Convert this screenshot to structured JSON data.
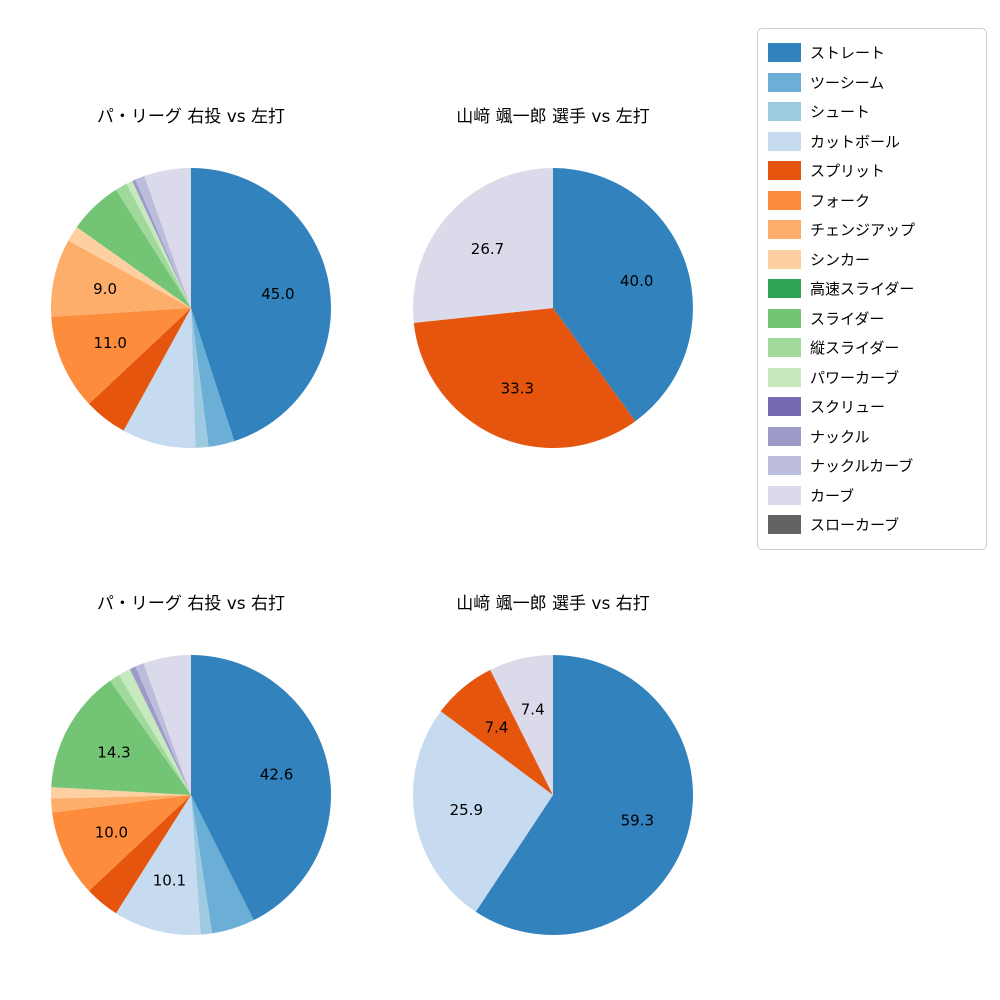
{
  "figure": {
    "background": "#ffffff",
    "text_color": "#000000"
  },
  "legend": {
    "position": "top-right",
    "items": [
      {
        "label": "ストレート",
        "color": "#3182bd"
      },
      {
        "label": "ツーシーム",
        "color": "#6baed6"
      },
      {
        "label": "シュート",
        "color": "#9ecae1"
      },
      {
        "label": "カットボール",
        "color": "#c6dbef"
      },
      {
        "label": "スプリット",
        "color": "#e6550d"
      },
      {
        "label": "フォーク",
        "color": "#fd8d3c"
      },
      {
        "label": "チェンジアップ",
        "color": "#fdae6b"
      },
      {
        "label": "シンカー",
        "color": "#fdd0a2"
      },
      {
        "label": "高速スライダー",
        "color": "#31a354"
      },
      {
        "label": "スライダー",
        "color": "#74c476"
      },
      {
        "label": "縦スライダー",
        "color": "#a1d99b"
      },
      {
        "label": "パワーカーブ",
        "color": "#c7e9c0"
      },
      {
        "label": "スクリュー",
        "color": "#756bb1"
      },
      {
        "label": "ナックル",
        "color": "#9e9ac8"
      },
      {
        "label": "ナックルカーブ",
        "color": "#bcbddc"
      },
      {
        "label": "カーブ",
        "color": "#dadaeb"
      },
      {
        "label": "スローカーブ",
        "color": "#636363"
      }
    ]
  },
  "chart_data": [
    {
      "type": "pie",
      "title": "パ・リーグ 右投 vs 左打",
      "start": "top",
      "direction": "clockwise",
      "slices": [
        {
          "name": "ストレート",
          "value": 45.0,
          "label": "45.0"
        },
        {
          "name": "ツーシーム",
          "value": 3.0,
          "label": null
        },
        {
          "name": "シュート",
          "value": 1.5,
          "label": null
        },
        {
          "name": "カットボール",
          "value": 8.5,
          "label": null
        },
        {
          "name": "スプリット",
          "value": 5.0,
          "label": null
        },
        {
          "name": "フォーク",
          "value": 11.0,
          "label": "11.0"
        },
        {
          "name": "チェンジアップ",
          "value": 9.0,
          "label": "9.0"
        },
        {
          "name": "シンカー",
          "value": 1.8,
          "label": null
        },
        {
          "name": "スライダー",
          "value": 6.2,
          "label": null
        },
        {
          "name": "縦スライダー",
          "value": 1.4,
          "label": null
        },
        {
          "name": "パワーカーブ",
          "value": 0.7,
          "label": null
        },
        {
          "name": "ナックル",
          "value": 0.4,
          "label": null
        },
        {
          "name": "ナックルカーブ",
          "value": 1.1,
          "label": null
        },
        {
          "name": "カーブ",
          "value": 5.4,
          "label": null
        }
      ]
    },
    {
      "type": "pie",
      "title": "山﨑 颯一郎 選手 vs 左打",
      "start": "top",
      "direction": "clockwise",
      "slices": [
        {
          "name": "ストレート",
          "value": 40.0,
          "label": "40.0"
        },
        {
          "name": "スプリット",
          "value": 33.3,
          "label": "33.3"
        },
        {
          "name": "カーブ",
          "value": 26.7,
          "label": "26.7"
        }
      ]
    },
    {
      "type": "pie",
      "title": "パ・リーグ 右投 vs 右打",
      "start": "top",
      "direction": "clockwise",
      "slices": [
        {
          "name": "ストレート",
          "value": 42.6,
          "label": "42.6"
        },
        {
          "name": "ツーシーム",
          "value": 5.0,
          "label": null
        },
        {
          "name": "シュート",
          "value": 1.3,
          "label": null
        },
        {
          "name": "カットボール",
          "value": 10.1,
          "label": "10.1"
        },
        {
          "name": "スプリット",
          "value": 4.0,
          "label": null
        },
        {
          "name": "フォーク",
          "value": 10.0,
          "label": "10.0"
        },
        {
          "name": "チェンジアップ",
          "value": 1.6,
          "label": null
        },
        {
          "name": "シンカー",
          "value": 1.3,
          "label": null
        },
        {
          "name": "スライダー",
          "value": 14.3,
          "label": "14.3"
        },
        {
          "name": "縦スライダー",
          "value": 1.2,
          "label": null
        },
        {
          "name": "パワーカーブ",
          "value": 1.4,
          "label": null
        },
        {
          "name": "ナックル",
          "value": 0.7,
          "label": null
        },
        {
          "name": "ナックルカーブ",
          "value": 1.0,
          "label": null
        },
        {
          "name": "カーブ",
          "value": 5.5,
          "label": null
        }
      ]
    },
    {
      "type": "pie",
      "title": "山﨑 颯一郎 選手 vs 右打",
      "start": "top",
      "direction": "clockwise",
      "slices": [
        {
          "name": "ストレート",
          "value": 59.3,
          "label": "59.3"
        },
        {
          "name": "カットボール",
          "value": 25.9,
          "label": "25.9"
        },
        {
          "name": "スプリット",
          "value": 7.4,
          "label": "7.4"
        },
        {
          "name": "カーブ",
          "value": 7.4,
          "label": "7.4"
        }
      ]
    }
  ]
}
